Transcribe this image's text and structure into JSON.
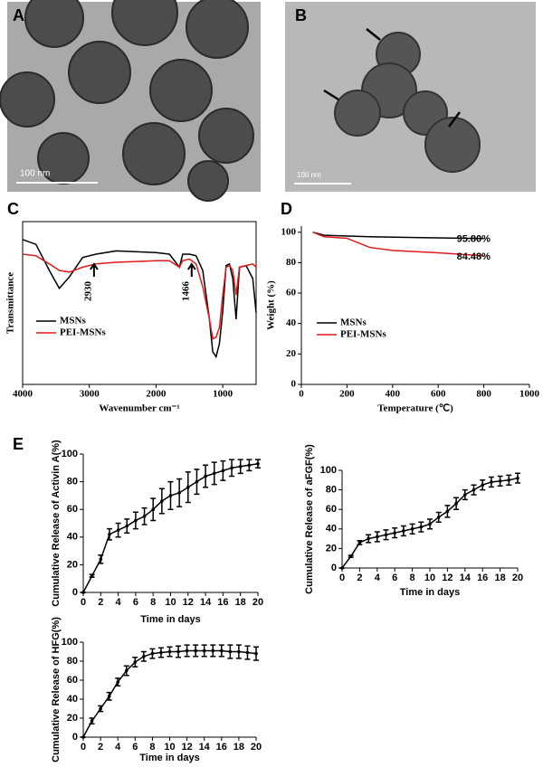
{
  "images": [
    {
      "label": "A",
      "scale": "100 nm"
    },
    {
      "label": "B",
      "scale": "100 nm"
    }
  ],
  "chart_data": [
    {
      "type": "line",
      "panel": "C",
      "xlabel": "Wavenumber cm⁻¹",
      "ylabel": "Transmittance",
      "xlim": [
        4000,
        500
      ],
      "xticks": [
        4000,
        3000,
        2000,
        1000
      ],
      "ylim": [
        0,
        100
      ],
      "legend": "lower left",
      "x": [
        4000,
        3800,
        3600,
        3450,
        3300,
        3100,
        2900,
        2600,
        2000,
        1800,
        1650,
        1600,
        1500,
        1400,
        1300,
        1200,
        1150,
        1100,
        1050,
        1000,
        950,
        900,
        850,
        800,
        750,
        650,
        550,
        500
      ],
      "series": [
        {
          "name": "MSNs",
          "color": "#000000",
          "values": [
            89,
            86,
            70,
            59,
            66,
            78,
            80,
            82,
            81,
            80,
            72,
            80,
            80,
            79,
            70,
            40,
            20,
            17,
            25,
            45,
            73,
            74,
            65,
            40,
            72,
            73,
            65,
            44
          ]
        },
        {
          "name": "PEI-MSNs",
          "color": "#e0191b",
          "values": [
            80,
            79,
            74,
            70,
            69,
            72,
            74,
            75,
            76,
            76,
            72,
            76,
            77,
            74,
            60,
            40,
            28,
            29,
            35,
            55,
            72,
            73,
            70,
            55,
            72,
            73,
            74,
            72
          ]
        }
      ],
      "annotations": [
        {
          "text": "2930",
          "x": 2930
        },
        {
          "text": "1466",
          "x": 1466
        }
      ]
    },
    {
      "type": "line",
      "panel": "D",
      "xlabel": "Temperature (℃)",
      "ylabel": "Weight (%)",
      "xlim": [
        0,
        1000
      ],
      "xticks": [
        0,
        200,
        400,
        600,
        800,
        1000
      ],
      "ylim": [
        0,
        104
      ],
      "yticks": [
        0,
        20,
        40,
        60,
        80,
        100
      ],
      "legend": "lower left",
      "series": [
        {
          "name": "MSNs",
          "color": "#000000",
          "x": [
            50,
            100,
            300,
            500,
            800
          ],
          "values": [
            100,
            98,
            97,
            96.5,
            95.8
          ],
          "end_label": "95.80%"
        },
        {
          "name": "PEI-MSNs",
          "color": "#e0191b",
          "x": [
            50,
            100,
            200,
            300,
            400,
            600,
            800
          ],
          "values": [
            100,
            97,
            96,
            90,
            88,
            86.5,
            84.48
          ],
          "end_label": "84.48%"
        }
      ]
    },
    {
      "type": "line",
      "panel": "E",
      "xlabel": "Time in days",
      "ylabel": "Cumulative Release of Activin A(%)",
      "xlim": [
        0,
        20
      ],
      "xticks": [
        0,
        2,
        4,
        6,
        8,
        10,
        12,
        14,
        16,
        18,
        20
      ],
      "ylim": [
        0,
        100
      ],
      "yticks": [
        0,
        20,
        40,
        60,
        80,
        100
      ],
      "x": [
        0,
        1,
        2,
        3,
        4,
        5,
        6,
        7,
        8,
        9,
        10,
        11,
        12,
        13,
        14,
        15,
        16,
        17,
        18,
        19,
        20
      ],
      "series": [
        {
          "color": "#000000",
          "values": [
            0,
            12,
            24,
            42,
            45,
            48,
            52,
            55,
            60,
            66,
            70,
            72,
            76,
            80,
            84,
            86,
            88,
            90,
            91,
            92,
            93
          ],
          "errors": [
            0,
            1,
            3,
            4,
            5,
            5,
            6,
            6,
            8,
            9,
            10,
            10,
            11,
            9,
            8,
            8,
            7,
            6,
            5,
            4,
            3
          ]
        }
      ]
    },
    {
      "type": "line",
      "xlabel": "Time in days",
      "ylabel": "Cumulative Release of aFGF(%)",
      "xlim": [
        0,
        20
      ],
      "xticks": [
        0,
        2,
        4,
        6,
        8,
        10,
        12,
        14,
        16,
        18,
        20
      ],
      "ylim": [
        0,
        100
      ],
      "yticks": [
        0,
        20,
        40,
        60,
        80,
        100
      ],
      "x": [
        0,
        1,
        2,
        3,
        4,
        5,
        6,
        7,
        8,
        9,
        10,
        11,
        12,
        13,
        14,
        15,
        16,
        17,
        18,
        19,
        20
      ],
      "series": [
        {
          "color": "#000000",
          "values": [
            0,
            12,
            26,
            30,
            32,
            34,
            36,
            38,
            40,
            42,
            45,
            52,
            58,
            66,
            75,
            80,
            85,
            88,
            89,
            90,
            92
          ],
          "errors": [
            0,
            1,
            2,
            4,
            5,
            5,
            5,
            5,
            5,
            5,
            5,
            5,
            6,
            6,
            5,
            5,
            5,
            5,
            5,
            5,
            5
          ]
        }
      ]
    },
    {
      "type": "line",
      "xlabel": "Time in days",
      "ylabel": "Cumulative Release of HFG(%)",
      "xlim": [
        0,
        20
      ],
      "xticks": [
        0,
        2,
        4,
        6,
        8,
        10,
        12,
        14,
        16,
        18,
        20
      ],
      "ylim": [
        0,
        100
      ],
      "yticks": [
        0,
        20,
        40,
        60,
        80,
        100
      ],
      "x": [
        0,
        1,
        2,
        3,
        4,
        5,
        6,
        7,
        8,
        9,
        10,
        11,
        12,
        13,
        14,
        15,
        16,
        17,
        18,
        19,
        20
      ],
      "series": [
        {
          "color": "#000000",
          "values": [
            0,
            17,
            30,
            43,
            58,
            70,
            79,
            85,
            88,
            89,
            90,
            90,
            91,
            91,
            91,
            91,
            91,
            90,
            90,
            89,
            88
          ],
          "errors": [
            0,
            3,
            3,
            4,
            4,
            5,
            5,
            5,
            5,
            5,
            5,
            6,
            6,
            6,
            6,
            6,
            6,
            7,
            7,
            7,
            7
          ]
        }
      ]
    }
  ]
}
